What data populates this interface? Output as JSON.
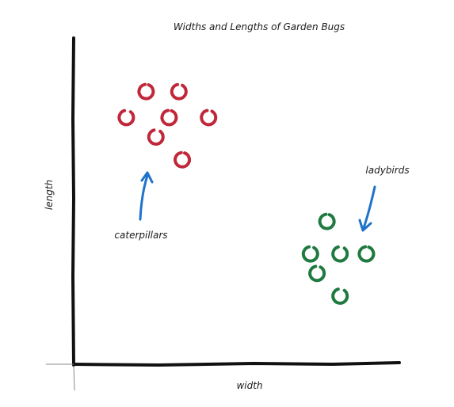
{
  "chart_data": {
    "type": "scatter",
    "title": "Widths and Lengths of Garden Bugs",
    "xlabel": "width",
    "ylabel": "length",
    "xlim": [
      0,
      10
    ],
    "ylim": [
      0,
      10
    ],
    "grid": false,
    "legend": "none",
    "series": [
      {
        "name": "caterpillars",
        "color": "#c0283a",
        "points": [
          {
            "x": 2.2,
            "y": 8.4
          },
          {
            "x": 3.2,
            "y": 8.4
          },
          {
            "x": 1.6,
            "y": 7.6
          },
          {
            "x": 2.9,
            "y": 7.6
          },
          {
            "x": 4.1,
            "y": 7.6
          },
          {
            "x": 2.5,
            "y": 7.0
          },
          {
            "x": 3.3,
            "y": 6.3
          }
        ]
      },
      {
        "name": "ladybirds",
        "color": "#1f7a40",
        "points": [
          {
            "x": 7.7,
            "y": 4.4
          },
          {
            "x": 7.2,
            "y": 3.4
          },
          {
            "x": 8.1,
            "y": 3.4
          },
          {
            "x": 8.9,
            "y": 3.4
          },
          {
            "x": 7.4,
            "y": 2.8
          },
          {
            "x": 8.1,
            "y": 2.1
          }
        ]
      }
    ],
    "annotations": [
      {
        "text": "caterpillars",
        "target_series": "caterpillars"
      },
      {
        "text": "ladybirds",
        "target_series": "ladybirds"
      }
    ],
    "arrow_color": "#1f73c8"
  }
}
